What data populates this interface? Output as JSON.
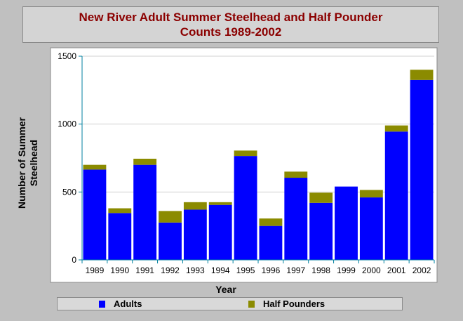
{
  "title_lines": [
    "New River Adult Summer Steelhead and Half Pounder",
    "Counts 1989-2002"
  ],
  "colors": {
    "adults": "#0000ff",
    "half_pounders": "#8b8b00",
    "plot_bg": "#ffffff",
    "axis": "#0080a0",
    "grid": "#d0d0d0"
  },
  "chart_data": {
    "type": "bar",
    "stacked": true,
    "title": "New River Adult Summer Steelhead and Half Pounder Counts 1989-2002",
    "xlabel": "Year",
    "ylabel": "Number of Summer Steelhead",
    "ylabel_lines": [
      "Number of Summer",
      "Steelhead"
    ],
    "ylim": [
      0,
      1500
    ],
    "yticks": [
      0,
      500,
      1000,
      1500
    ],
    "grid": true,
    "legend_position": "bottom",
    "categories": [
      "1989",
      "1990",
      "1991",
      "1992",
      "1993",
      "1994",
      "1995",
      "1996",
      "1997",
      "1998",
      "1999",
      "2000",
      "2001",
      "2002"
    ],
    "series": [
      {
        "name": "Adults",
        "values": [
          665,
          345,
          700,
          275,
          370,
          405,
          765,
          250,
          605,
          420,
          540,
          460,
          945,
          1325
        ]
      },
      {
        "name": "Half Pounders",
        "values": [
          35,
          35,
          45,
          85,
          55,
          20,
          40,
          55,
          45,
          75,
          0,
          55,
          45,
          75
        ]
      }
    ]
  }
}
